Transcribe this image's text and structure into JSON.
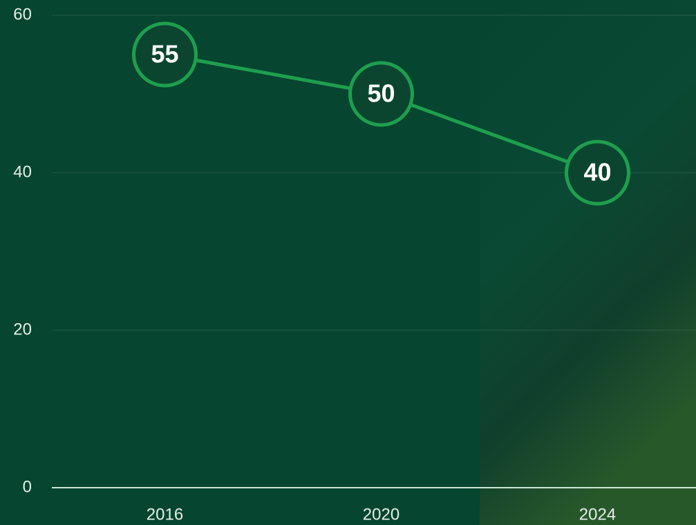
{
  "chart_data": {
    "type": "line",
    "categories": [
      "2016",
      "2020",
      "2024"
    ],
    "values": [
      55,
      50,
      40
    ],
    "color": "#1e9f4e",
    "ylim": [
      0,
      60
    ],
    "yticks": [
      0,
      20,
      40,
      60
    ],
    "grid": true
  }
}
